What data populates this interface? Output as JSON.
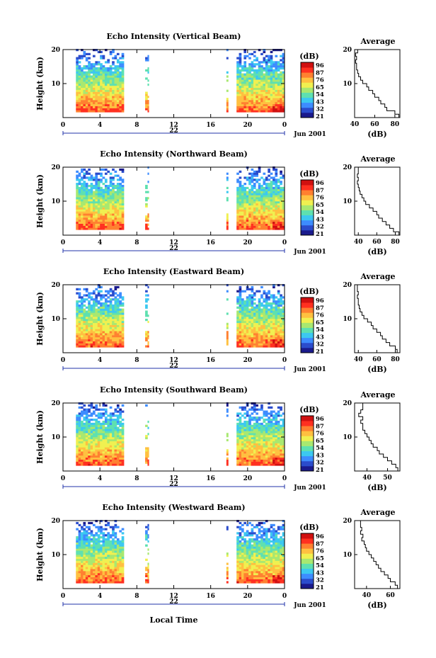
{
  "figure": {
    "x_axis_label": "Local Time",
    "date_label": "Jun 2001",
    "day_label": "22",
    "avg_title": "Average",
    "avg_unit": "(dB)",
    "colorbar_unit": "(dB)",
    "colorbar_ticks": [
      "96",
      "87",
      "76",
      "65",
      "54",
      "43",
      "32",
      "21"
    ],
    "colormap": [
      "#1a1a8c",
      "#2b4ccc",
      "#3d8cff",
      "#3cc8f0",
      "#5ee0b0",
      "#a8e870",
      "#f0f050",
      "#ffc040",
      "#ff8030",
      "#ff3020",
      "#d01010"
    ]
  },
  "chart_data": [
    {
      "type": "heatmap",
      "title": "Echo Intensity (Vertical Beam)",
      "xlabel": "",
      "ylabel": "Height (km)",
      "xlim": [
        0,
        24
      ],
      "ylim": [
        0,
        20
      ],
      "xticks": [
        "0",
        "4",
        "8",
        "12",
        "16",
        "20",
        "0"
      ],
      "yticks": [
        "20",
        "10"
      ],
      "data_time_blocks": [
        [
          1.4,
          6.6
        ],
        [
          8.9,
          9.3
        ],
        [
          17.7,
          17.9
        ],
        [
          18.8,
          24
        ]
      ],
      "colorbar_range_db": [
        21,
        96
      ],
      "average_profile": {
        "xticks": [
          "40",
          "60",
          "80"
        ],
        "xlim": [
          40,
          85
        ],
        "height_km": [
          1,
          2,
          3,
          4,
          5,
          6,
          7,
          8,
          9,
          10,
          11,
          12,
          13,
          14,
          15,
          16,
          17,
          18,
          19,
          20
        ],
        "db": [
          84,
          80,
          72,
          70,
          66,
          64,
          60,
          58,
          54,
          52,
          48,
          46,
          44,
          43,
          42,
          42,
          41,
          42,
          41,
          43
        ]
      }
    },
    {
      "type": "heatmap",
      "title": "Echo Intensity (Northward Beam)",
      "xlabel": "",
      "ylabel": "Height (km)",
      "xlim": [
        0,
        24
      ],
      "ylim": [
        0,
        20
      ],
      "xticks": [
        "0",
        "4",
        "8",
        "12",
        "16",
        "20",
        "0"
      ],
      "yticks": [
        "20",
        "10"
      ],
      "data_time_blocks": [
        [
          1.4,
          6.6
        ],
        [
          8.9,
          9.3
        ],
        [
          17.7,
          17.9
        ],
        [
          18.8,
          24
        ]
      ],
      "colorbar_range_db": [
        21,
        96
      ],
      "average_profile": {
        "xticks": [
          "40",
          "60",
          "80"
        ],
        "xlim": [
          36,
          85
        ],
        "height_km": [
          1,
          2,
          3,
          4,
          5,
          6,
          7,
          8,
          9,
          10,
          11,
          12,
          13,
          14,
          15,
          16,
          17,
          18,
          19,
          20
        ],
        "db": [
          84,
          78,
          74,
          70,
          66,
          62,
          60,
          56,
          52,
          48,
          46,
          44,
          42,
          41,
          40,
          39,
          40,
          39,
          40,
          40
        ]
      }
    },
    {
      "type": "heatmap",
      "title": "Echo Intensity (Eastward Beam)",
      "xlabel": "",
      "ylabel": "Height (km)",
      "xlim": [
        0,
        24
      ],
      "ylim": [
        0,
        20
      ],
      "xticks": [
        "0",
        "4",
        "8",
        "12",
        "16",
        "20",
        "0"
      ],
      "yticks": [
        "20",
        "10"
      ],
      "data_time_blocks": [
        [
          1.4,
          6.6
        ],
        [
          8.9,
          9.3
        ],
        [
          17.7,
          17.9
        ],
        [
          18.8,
          24
        ]
      ],
      "colorbar_range_db": [
        21,
        96
      ],
      "average_profile": {
        "xticks": [
          "40",
          "60",
          "80"
        ],
        "xlim": [
          36,
          85
        ],
        "height_km": [
          1,
          2,
          3,
          4,
          5,
          6,
          7,
          8,
          9,
          10,
          11,
          12,
          13,
          14,
          15,
          16,
          17,
          18,
          19,
          20
        ],
        "db": [
          82,
          80,
          74,
          70,
          66,
          64,
          60,
          56,
          54,
          50,
          46,
          44,
          42,
          41,
          40,
          40,
          39,
          40,
          39,
          39
        ]
      }
    },
    {
      "type": "heatmap",
      "title": "Echo Intensity (Southward Beam)",
      "xlabel": "",
      "ylabel": "Height (km)",
      "xlim": [
        0,
        24
      ],
      "ylim": [
        0,
        20
      ],
      "xticks": [
        "0",
        "4",
        "8",
        "12",
        "16",
        "20",
        "0"
      ],
      "yticks": [
        "20",
        "10"
      ],
      "data_time_blocks": [
        [
          1.4,
          6.6
        ],
        [
          8.9,
          9.3
        ],
        [
          17.7,
          17.9
        ],
        [
          18.8,
          24
        ]
      ],
      "colorbar_range_db": [
        21,
        96
      ],
      "average_profile": {
        "xticks": [
          "40",
          "50"
        ],
        "xlim": [
          34,
          56
        ],
        "height_km": [
          1,
          2,
          3,
          4,
          5,
          6,
          7,
          8,
          9,
          10,
          11,
          12,
          13,
          14,
          15,
          16,
          17,
          18,
          19,
          20
        ],
        "db": [
          55,
          54,
          52,
          50,
          48,
          46,
          45,
          43,
          42,
          41,
          40,
          39,
          38,
          38,
          37,
          38,
          36,
          37,
          38,
          38
        ]
      }
    },
    {
      "type": "heatmap",
      "title": "Echo Intensity (Westward Beam)",
      "xlabel": "Local Time",
      "ylabel": "Height (km)",
      "xlim": [
        0,
        24
      ],
      "ylim": [
        0,
        20
      ],
      "xticks": [
        "0",
        "4",
        "8",
        "12",
        "16",
        "20",
        "0"
      ],
      "yticks": [
        "20",
        "10"
      ],
      "data_time_blocks": [
        [
          1.4,
          6.6
        ],
        [
          8.9,
          9.3
        ],
        [
          17.7,
          17.9
        ],
        [
          18.8,
          24
        ]
      ],
      "colorbar_range_db": [
        21,
        96
      ],
      "average_profile": {
        "xticks": [
          "40",
          "60"
        ],
        "xlim": [
          30,
          68
        ],
        "height_km": [
          1,
          2,
          3,
          4,
          5,
          6,
          7,
          8,
          9,
          10,
          11,
          12,
          13,
          14,
          15,
          16,
          17,
          18,
          19,
          20
        ],
        "db": [
          66,
          64,
          60,
          58,
          55,
          52,
          50,
          48,
          46,
          44,
          42,
          40,
          39,
          38,
          36,
          37,
          35,
          36,
          35,
          35
        ]
      }
    }
  ]
}
